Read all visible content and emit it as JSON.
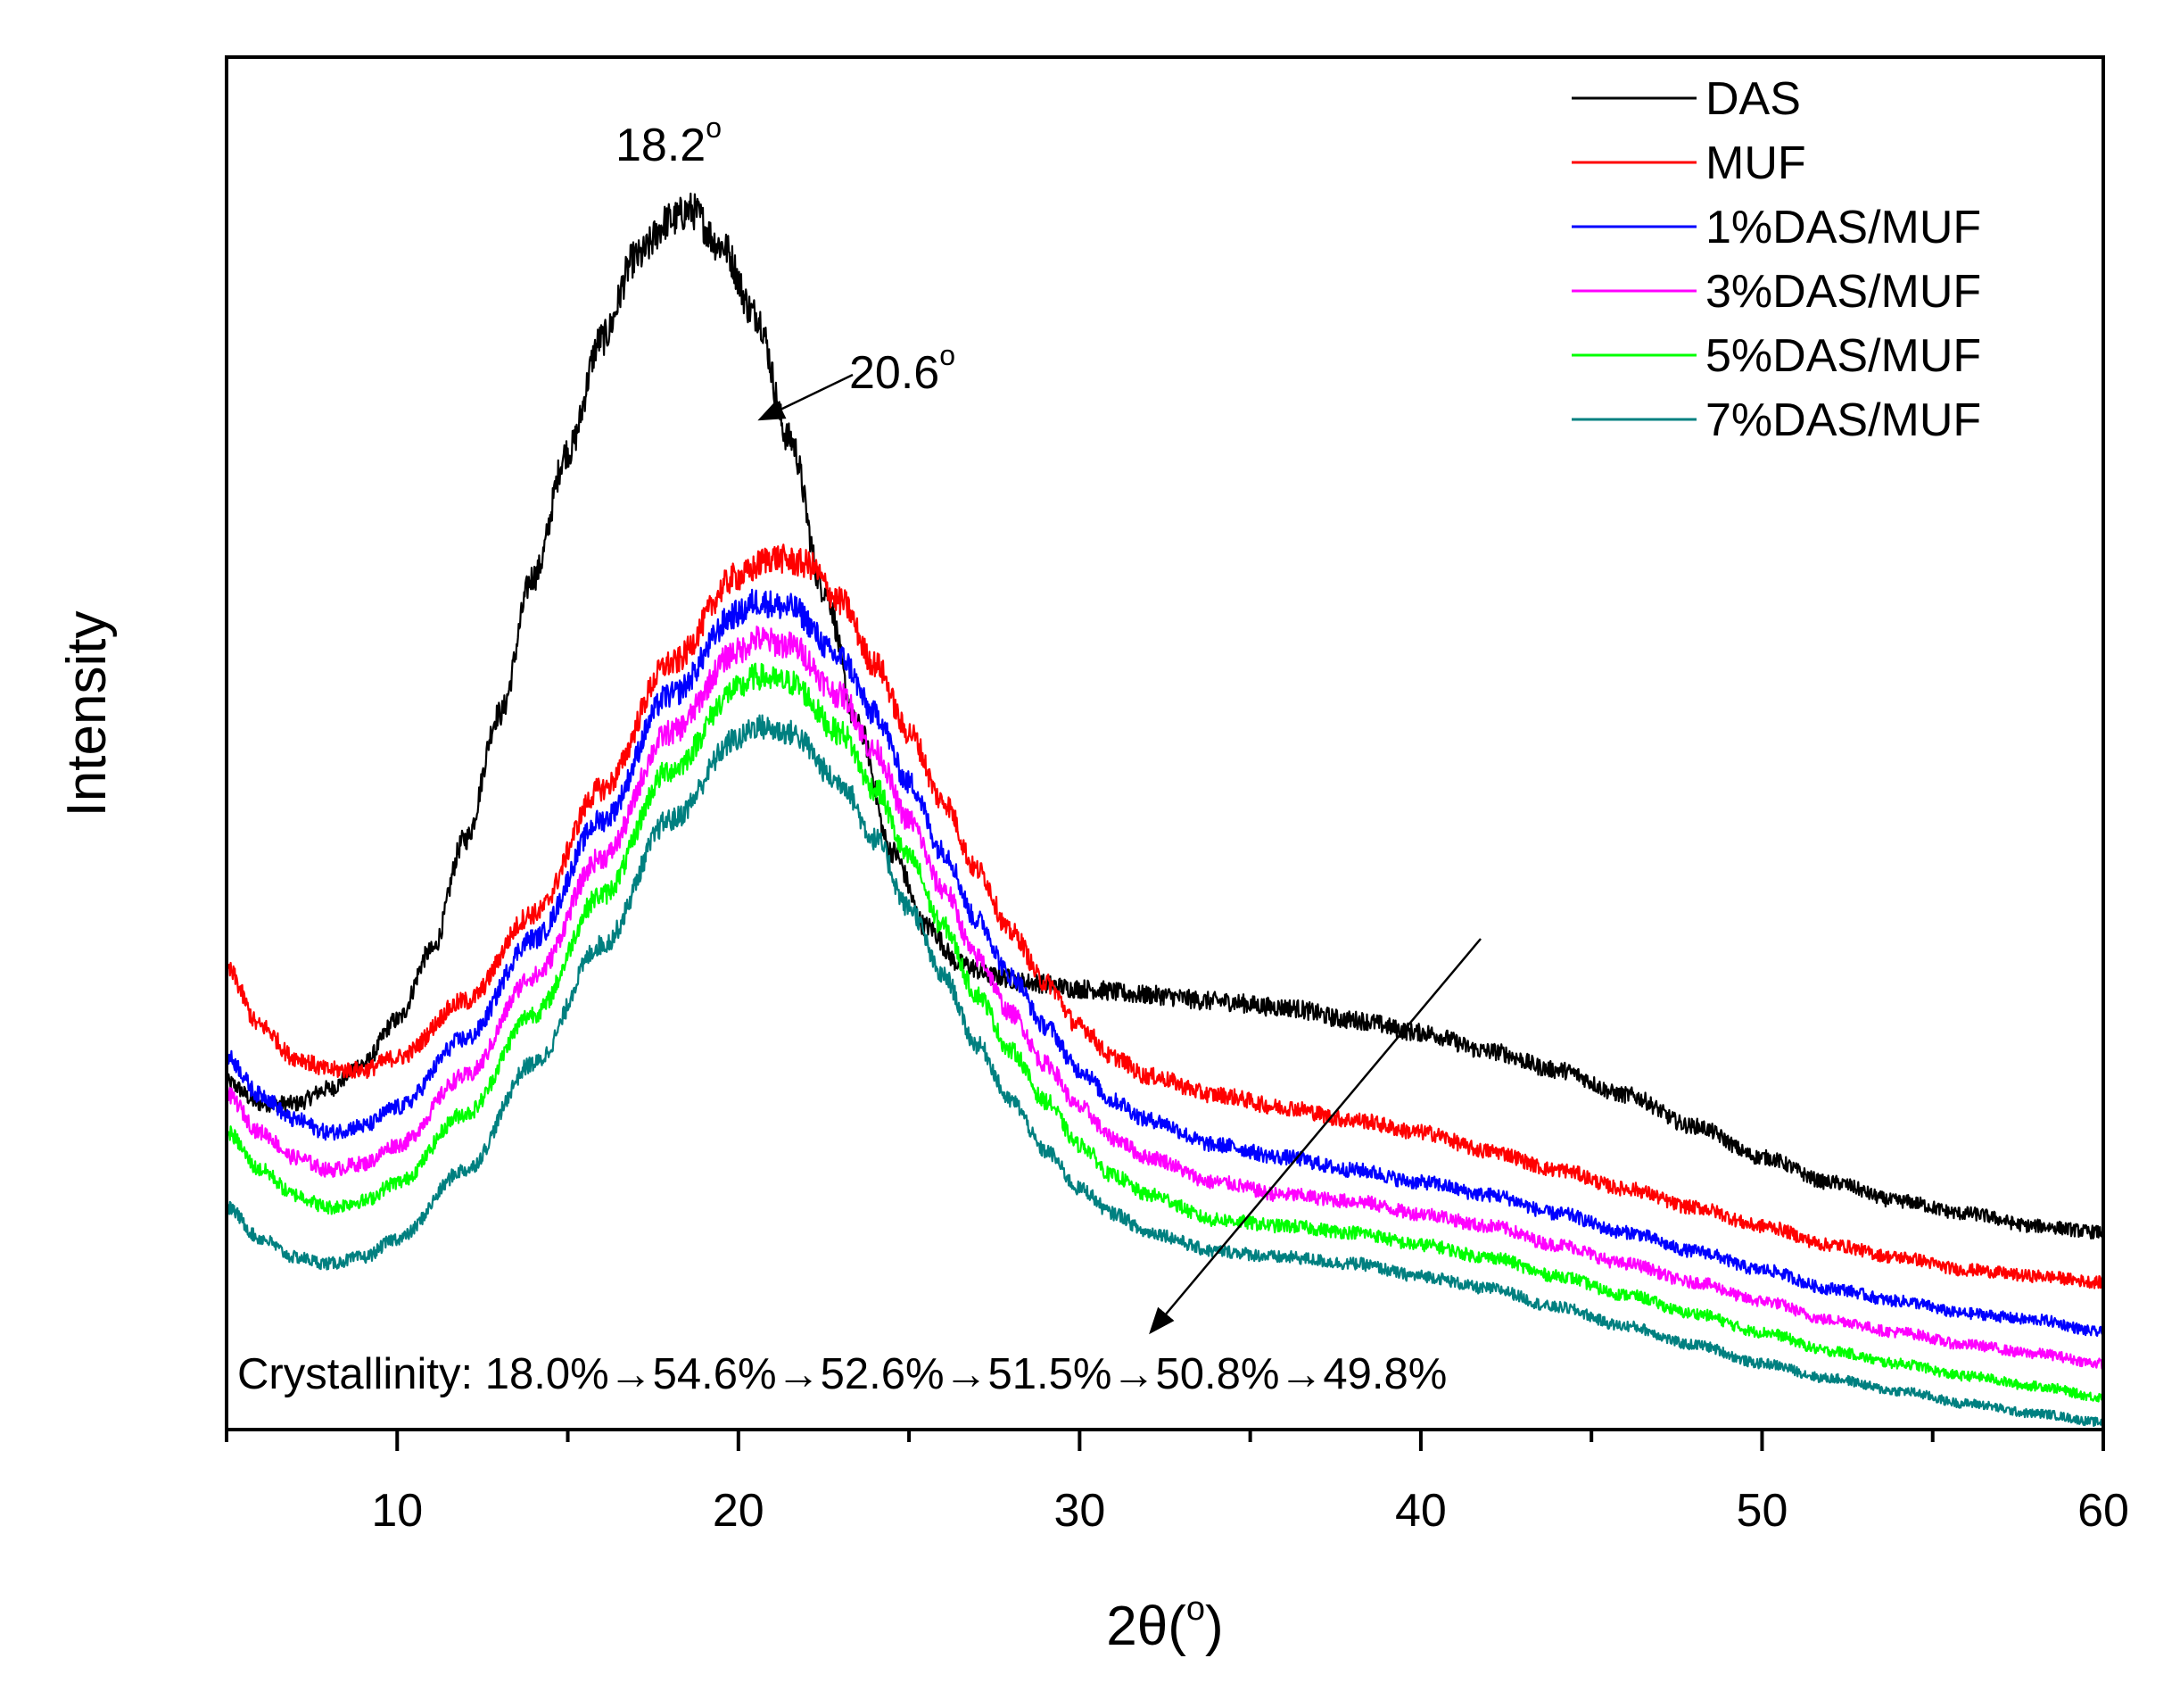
{
  "chart_data": {
    "type": "line",
    "xlabel": "2θ(°)",
    "ylabel": "Intensity",
    "xlim": [
      5,
      60
    ],
    "ylim": [
      0,
      100
    ],
    "x_ticks": [
      10,
      20,
      30,
      40,
      50,
      60
    ],
    "x_tick_labels": [
      "10",
      "20",
      "30",
      "40",
      "50",
      "60"
    ],
    "legend_position": "top-right",
    "series": [
      {
        "name": "DAS",
        "color": "#000000",
        "x": [
          5,
          6,
          7,
          8,
          9,
          10,
          11,
          12,
          13,
          14,
          15,
          16,
          17,
          18,
          18.6,
          19.5,
          20.5,
          21.5,
          22.5,
          23.5,
          24.5,
          25.5,
          26.5,
          27.5,
          28.5,
          30,
          32,
          34,
          36,
          38,
          40,
          42,
          44,
          46,
          48,
          50,
          52,
          54,
          56,
          58,
          60
        ],
        "y": [
          27.5,
          25.8,
          25.8,
          27,
          29,
          32.5,
          38,
          47,
          57,
          68,
          78,
          87,
          93.5,
          96.5,
          97.3,
          94.5,
          89,
          79,
          67,
          56,
          46,
          40,
          37,
          36,
          35.5,
          35,
          34.5,
          34,
          33.5,
          32.5,
          31.5,
          30,
          28.5,
          26.5,
          24,
          21.5,
          19.5,
          18,
          17,
          16,
          15.5
        ]
      },
      {
        "name": "MUF",
        "color": "#ff0000",
        "x": [
          5,
          6,
          7,
          8,
          9,
          10,
          12,
          14,
          16,
          18,
          20,
          21,
          22,
          23,
          24,
          25,
          26,
          27,
          28,
          29,
          30,
          31,
          32,
          34,
          36,
          38,
          40,
          42,
          44,
          46,
          48,
          50,
          52,
          54,
          56,
          58,
          60
        ],
        "y": [
          36.5,
          32,
          29.5,
          28.5,
          28.5,
          29.5,
          34,
          41,
          51,
          61,
          68,
          69.5,
          69,
          66,
          61,
          55.5,
          50,
          44.5,
          39.5,
          35.5,
          32,
          29.5,
          28,
          26.5,
          25.5,
          24.5,
          23.5,
          22,
          20.5,
          19,
          17.5,
          16,
          14.5,
          13.5,
          12.5,
          12,
          11.5
        ]
      },
      {
        "name": "1%DAS/MUF",
        "color": "#0000ff",
        "x": [
          5,
          6,
          7,
          8,
          9,
          10,
          12,
          14,
          16,
          18,
          20,
          20.5,
          21.5,
          23,
          24,
          25,
          26,
          27,
          28,
          29,
          30,
          31,
          32,
          34,
          36,
          38,
          40,
          42,
          44,
          46,
          48,
          50,
          52,
          54,
          56,
          58,
          60
        ],
        "y": [
          29.5,
          26.5,
          24.5,
          23.5,
          24,
          25.5,
          31,
          39,
          48.5,
          58.5,
          65,
          66,
          65.5,
          61.5,
          57,
          51.5,
          46,
          40.5,
          36,
          32,
          28.5,
          26,
          24.5,
          22.5,
          21.5,
          20.5,
          19.5,
          18.5,
          17,
          15.5,
          14,
          12.5,
          11,
          10,
          9,
          8.5,
          7.5
        ]
      },
      {
        "name": "3%DAS/MUF",
        "color": "#ff00ff",
        "x": [
          5,
          6,
          7,
          8,
          9,
          10,
          12,
          14,
          16,
          18,
          20,
          20.5,
          21.5,
          23,
          24,
          25,
          26,
          27,
          28,
          29,
          30,
          31,
          32,
          34,
          36,
          38,
          40,
          42,
          44,
          46,
          48,
          50,
          52,
          54,
          56,
          58,
          60
        ],
        "y": [
          26.5,
          23.5,
          21.5,
          20.5,
          21,
          22.5,
          28,
          36,
          45.5,
          55.5,
          62,
          63,
          62.5,
          58.5,
          54,
          48.5,
          43,
          37.5,
          33,
          29,
          25.5,
          23,
          21.5,
          19.5,
          18.5,
          18,
          17,
          16,
          14.5,
          13,
          11.5,
          10,
          8.5,
          7.5,
          6.5,
          5.8,
          5
        ]
      },
      {
        "name": "5%DAS/MUF",
        "color": "#00ff00",
        "x": [
          5,
          6,
          7,
          8,
          9,
          10,
          12,
          14,
          16,
          18,
          20,
          20.5,
          21.5,
          23,
          24,
          25,
          26,
          27,
          28,
          29,
          30,
          31,
          32,
          34,
          36,
          38,
          40,
          42,
          44,
          46,
          48,
          50,
          52,
          54,
          56,
          58,
          60
        ],
        "y": [
          23.5,
          20.5,
          18.5,
          17.5,
          18,
          19.5,
          25,
          33,
          42.5,
          52.5,
          59,
          60,
          59.5,
          55.5,
          51,
          45.5,
          40,
          34.5,
          30,
          26,
          22.5,
          20,
          18.5,
          16.5,
          16,
          15.5,
          14.5,
          13.5,
          12,
          10.5,
          9,
          7.5,
          6,
          5,
          4,
          3.2,
          2.3
        ]
      },
      {
        "name": "7%DAS/MUF",
        "color": "#008080",
        "x": [
          5,
          6,
          7,
          8,
          9,
          10,
          12,
          14,
          16,
          18,
          20,
          20.5,
          21.5,
          23,
          24,
          25,
          26,
          27,
          28,
          29,
          30,
          31,
          32,
          34,
          36,
          38,
          40,
          42,
          44,
          46,
          48,
          50,
          52,
          54,
          56,
          58,
          60
        ],
        "y": [
          17.5,
          15,
          13.5,
          13,
          13.5,
          15,
          20.5,
          29,
          38.5,
          48.5,
          55,
          56,
          55.5,
          51.5,
          47,
          41.5,
          36,
          30.5,
          26,
          22,
          19,
          17,
          15.5,
          14,
          13.5,
          13,
          12,
          11,
          9.5,
          8,
          6.5,
          5,
          3.8,
          2.8,
          1.8,
          1,
          0.3
        ]
      }
    ],
    "annotations": {
      "das_peak": {
        "label": "18.2",
        "superscript": "o",
        "x": 18.2,
        "y": 97.3
      },
      "muf_peak": {
        "label": "20.6",
        "superscript": "o",
        "x": 20.6,
        "y": 69.5
      },
      "crystallinity": "Crystallinity: 18.0%→54.6%→52.6%→51.5%→50.8%→49.8%"
    }
  }
}
